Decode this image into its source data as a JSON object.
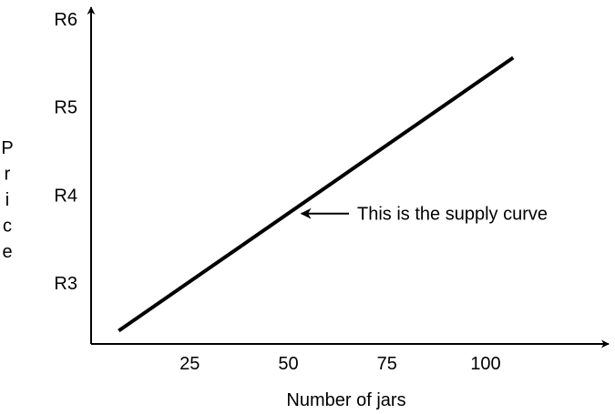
{
  "chart_data": {
    "type": "line",
    "title": "",
    "xlabel": "Number of jars",
    "ylabel": "Price",
    "x_ticks": [
      {
        "value": 25,
        "label": "25"
      },
      {
        "value": 50,
        "label": "50"
      },
      {
        "value": 75,
        "label": "75"
      },
      {
        "value": 100,
        "label": "100"
      }
    ],
    "y_ticks": [
      {
        "value": 3,
        "label": "R3"
      },
      {
        "value": 4,
        "label": "R4"
      },
      {
        "value": 5,
        "label": "R5"
      },
      {
        "value": 6,
        "label": "R6"
      }
    ],
    "xlim": [
      0,
      140
    ],
    "ylim": [
      2.3,
      6.5
    ],
    "grid": false,
    "series": [
      {
        "points": [
          {
            "x": 7,
            "y": 2.45
          },
          {
            "x": 107,
            "y": 5.55
          }
        ],
        "color": "#000000"
      }
    ],
    "annotations": [
      {
        "text": "This is the supply curve",
        "target": {
          "x": 51,
          "y": 3.78
        }
      }
    ]
  }
}
